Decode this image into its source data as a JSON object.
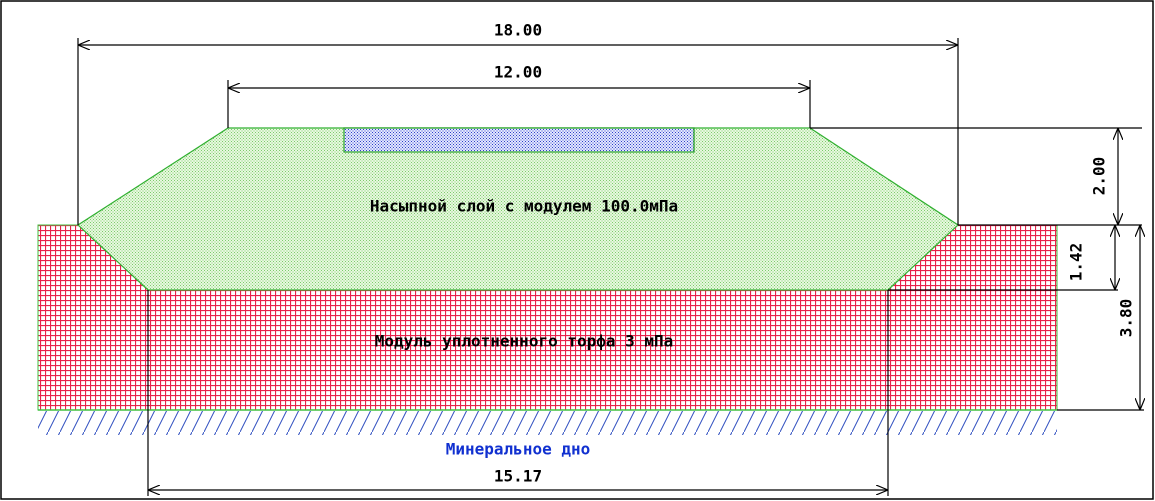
{
  "dimensions": {
    "embankment_bottom_width": "18.00",
    "embankment_top_width": "12.00",
    "embankment_height": "2.00",
    "settlement_depth": "1.42",
    "peat_thickness": "3.80",
    "settled_base_width": "15.17"
  },
  "labels": {
    "embankment_layer": "Насыпной слой с модулем 100.0мПа",
    "peat_layer": "Модуль уплотненного торфа  3 мПа",
    "mineral_bottom": "Минеральное дно"
  }
}
